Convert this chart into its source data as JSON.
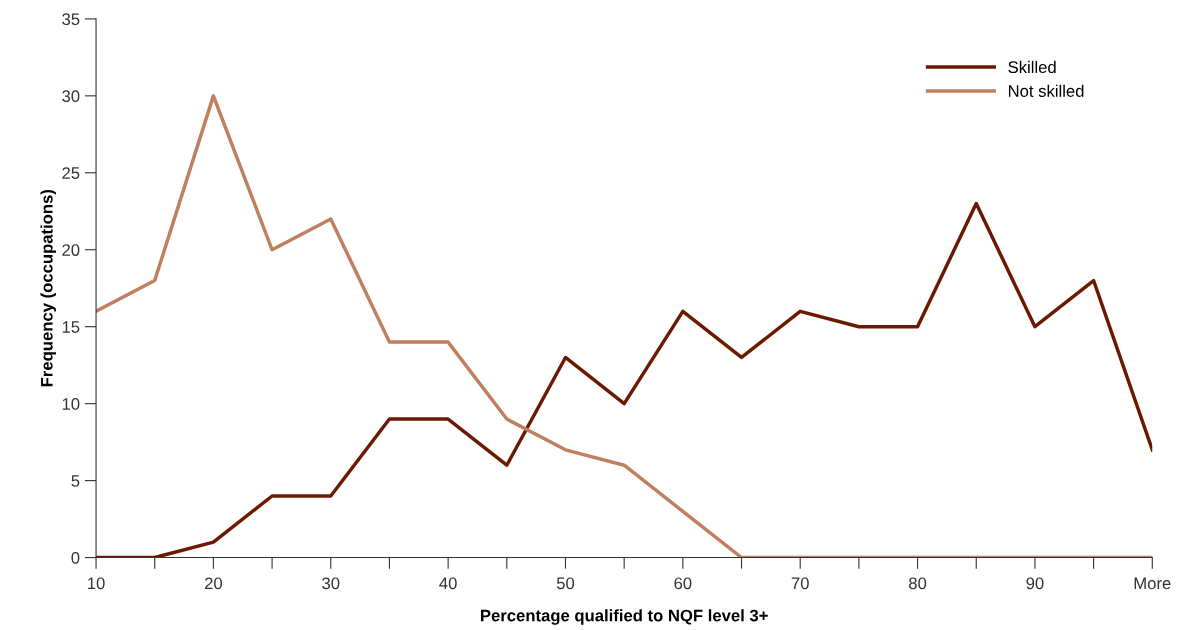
{
  "chart_data": {
    "type": "line",
    "xlabel": "Percentage qualified to NQF level 3+",
    "ylabel": "Frequency (occupations)",
    "categories": [
      "10",
      null,
      "20",
      null,
      "30",
      null,
      "40",
      null,
      "50",
      null,
      "60",
      null,
      "70",
      null,
      "80",
      null,
      "90",
      null,
      "More"
    ],
    "series": [
      {
        "name": "Skilled",
        "color": "#6b1a00",
        "values": [
          0,
          0,
          1,
          4,
          4,
          9,
          9,
          6,
          13,
          10,
          16,
          13,
          16,
          15,
          15,
          23,
          15,
          18,
          7
        ]
      },
      {
        "name": "Not skilled",
        "color": "#c07f5f",
        "values": [
          16,
          18,
          30,
          20,
          22,
          14,
          14,
          9,
          7,
          6,
          3,
          0,
          0,
          0,
          0,
          0,
          0,
          0,
          0
        ]
      }
    ],
    "ylim": [
      0,
      35
    ],
    "yticks": [
      0,
      5,
      10,
      15,
      20,
      25,
      30,
      35
    ],
    "grid": false,
    "legend": "top right",
    "marker": "none",
    "line_style": "solid"
  }
}
